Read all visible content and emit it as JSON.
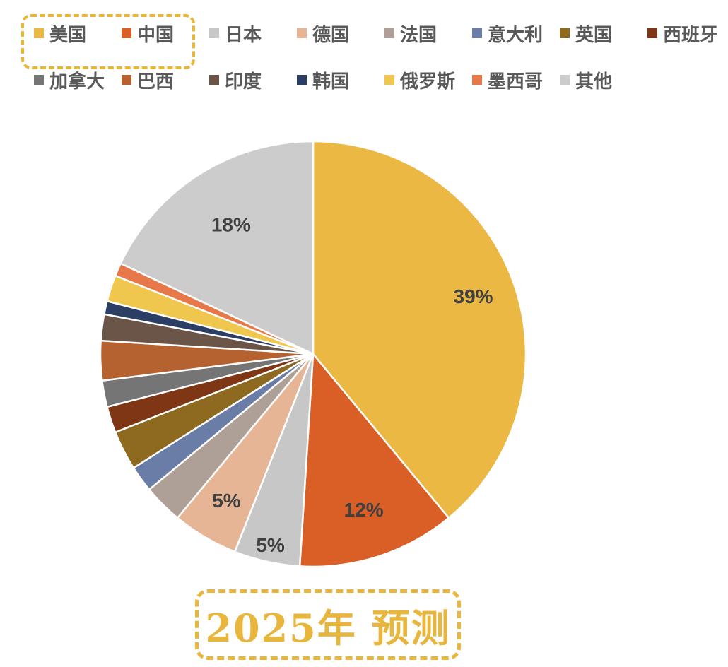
{
  "chart_data": {
    "type": "pie",
    "categories": [
      "美国",
      "中国",
      "日本",
      "德国",
      "法国",
      "意大利",
      "英国",
      "西班牙",
      "加拿大",
      "巴西",
      "印度",
      "韩国",
      "俄罗斯",
      "墨西哥",
      "其他"
    ],
    "values": [
      39,
      12,
      5,
      5,
      3,
      2,
      3,
      2,
      2,
      3,
      2,
      1,
      2,
      1,
      18
    ],
    "data_labels": [
      "39%",
      "12%",
      "5%",
      "5%",
      "",
      "",
      "",
      "",
      "",
      "",
      "",
      "",
      "",
      "",
      "18%"
    ],
    "colors": [
      "#ebb844",
      "#d95f27",
      "#c7c7c7",
      "#e6b595",
      "#aea097",
      "#6a7da6",
      "#8e6a21",
      "#7f3614",
      "#757575",
      "#b56230",
      "#6b5548",
      "#2c3e63",
      "#f0c74e",
      "#e6784a",
      "#cccccc"
    ],
    "legend_position": "top",
    "highlighted_legend": [
      "美国",
      "中国"
    ]
  },
  "caption": "2025年 预测"
}
